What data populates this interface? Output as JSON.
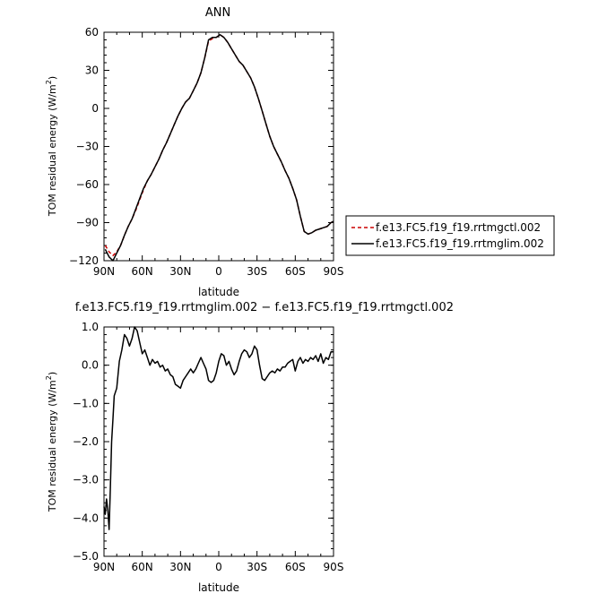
{
  "chart_data": [
    {
      "type": "line",
      "title": "ANN",
      "xlabel": "latitude",
      "ylabel": "TOM residual energy (W/m²)",
      "ylabel_main": "TOM residual energy (W/m",
      "ylabel_tail": ")",
      "ylabel_sup": "2",
      "xlim": [
        90,
        -90
      ],
      "ylim": [
        -120,
        60
      ],
      "xticks": [
        90,
        60,
        30,
        0,
        -30,
        -60,
        -90
      ],
      "xtick_labels": [
        "90N",
        "60N",
        "30N",
        "0",
        "30S",
        "60S",
        "90S"
      ],
      "yticks": [
        -120,
        -90,
        -60,
        -30,
        0,
        30,
        60
      ],
      "ytick_labels": [
        "−120",
        "−90",
        "−60",
        "−30",
        "0",
        "30",
        "60"
      ],
      "legend": "right",
      "series": [
        {
          "name": "f.e13.FC5.f19_f19.rrtmgctl.002",
          "color": "#cc0000",
          "dash": "dashed",
          "x": [
            89,
            86,
            83,
            80,
            77,
            74,
            71,
            68,
            65,
            62,
            59,
            56,
            53,
            50,
            47,
            44,
            41,
            38,
            35,
            32,
            29,
            26,
            23,
            20,
            17,
            14,
            11,
            8,
            5,
            2,
            -1,
            -4,
            -7,
            -10,
            -13,
            -16,
            -19,
            -22,
            -25,
            -28,
            -31,
            -34,
            -37,
            -40,
            -43,
            -46,
            -49,
            -52,
            -55,
            -58,
            -61,
            -64,
            -67,
            -70,
            -73,
            -76,
            -79,
            -82,
            -85,
            -88,
            -90
          ],
          "y": [
            -108,
            -113,
            -116,
            -113,
            -108,
            -100,
            -93,
            -87,
            -80,
            -72,
            -64,
            -57,
            -52,
            -46,
            -40,
            -33,
            -27,
            -20,
            -13,
            -6,
            0,
            5,
            8,
            14,
            20,
            28,
            40,
            53,
            55,
            56,
            58,
            56,
            52,
            47,
            42,
            37,
            34,
            29,
            24,
            17,
            8,
            -2,
            -12,
            -22,
            -30,
            -36,
            -42,
            -49,
            -55,
            -63,
            -72,
            -85,
            -97,
            -99,
            -98,
            -96,
            -95,
            -94,
            -93,
            -90,
            -89
          ]
        },
        {
          "name": "f.e13.FC5.f19_f19.rrtmglim.002",
          "color": "#000000",
          "dash": "solid",
          "x": [
            89,
            86,
            83,
            80,
            77,
            74,
            71,
            68,
            65,
            62,
            59,
            56,
            53,
            50,
            47,
            44,
            41,
            38,
            35,
            32,
            29,
            26,
            23,
            20,
            17,
            14,
            11,
            8,
            5,
            2,
            -1,
            -4,
            -7,
            -10,
            -13,
            -16,
            -19,
            -22,
            -25,
            -28,
            -31,
            -34,
            -37,
            -40,
            -43,
            -46,
            -49,
            -52,
            -55,
            -58,
            -61,
            -64,
            -67,
            -70,
            -73,
            -76,
            -79,
            -82,
            -85,
            -88,
            -90
          ],
          "y": [
            -111,
            -117,
            -120,
            -114,
            -108,
            -100,
            -93,
            -87,
            -79,
            -71,
            -63,
            -57,
            -52,
            -46,
            -40,
            -33,
            -27,
            -20,
            -13,
            -6,
            0,
            5,
            8,
            14,
            20,
            28,
            40,
            54,
            56,
            56,
            58,
            56,
            52,
            47,
            42,
            37,
            34,
            29,
            24,
            17,
            8,
            -2,
            -12,
            -22,
            -30,
            -36,
            -42,
            -49,
            -55,
            -63,
            -72,
            -85,
            -97,
            -99,
            -98,
            -96,
            -95,
            -94,
            -93,
            -90,
            -89
          ]
        }
      ]
    },
    {
      "type": "line",
      "title": "f.e13.FC5.f19_f19.rrtmglim.002 − f.e13.FC5.f19_f19.rrtmgctl.002",
      "xlabel": "latitude",
      "ylabel": "TOM residual energy (W/m²)",
      "ylabel_main": "TOM residual energy (W/m",
      "ylabel_tail": ")",
      "ylabel_sup": "2",
      "xlim": [
        90,
        -90
      ],
      "ylim": [
        -5,
        1
      ],
      "xticks": [
        90,
        60,
        30,
        0,
        -30,
        -60,
        -90
      ],
      "xtick_labels": [
        "90N",
        "60N",
        "30N",
        "0",
        "30S",
        "60S",
        "90S"
      ],
      "yticks": [
        -5,
        -4,
        -3,
        -2,
        -1,
        0,
        1
      ],
      "ytick_labels": [
        "−5.0",
        "−4.0",
        "−3.0",
        "−2.0",
        "−1.0",
        "0.0",
        "1.0"
      ],
      "series": [
        {
          "name": "",
          "color": "#000000",
          "dash": "solid",
          "x": [
            90,
            89,
            88,
            87,
            86,
            85,
            84,
            83,
            82,
            80,
            78,
            76,
            74,
            72,
            70,
            68,
            66,
            64,
            62,
            60,
            58,
            56,
            54,
            52,
            50,
            48,
            46,
            44,
            42,
            40,
            38,
            36,
            34,
            32,
            30,
            28,
            26,
            24,
            22,
            20,
            18,
            16,
            14,
            12,
            10,
            8,
            6,
            4,
            2,
            0,
            -2,
            -4,
            -6,
            -8,
            -10,
            -12,
            -14,
            -16,
            -18,
            -20,
            -22,
            -24,
            -26,
            -28,
            -30,
            -32,
            -34,
            -36,
            -38,
            -40,
            -42,
            -44,
            -46,
            -48,
            -50,
            -52,
            -54,
            -56,
            -58,
            -60,
            -62,
            -64,
            -66,
            -68,
            -70,
            -72,
            -74,
            -76,
            -78,
            -80,
            -82,
            -84,
            -86,
            -88,
            -90
          ],
          "y": [
            -3.7,
            -3.9,
            -3.5,
            -3.8,
            -4.3,
            -3.2,
            -2.0,
            -1.4,
            -0.8,
            -0.6,
            0.1,
            0.4,
            0.8,
            0.7,
            0.5,
            0.7,
            1.0,
            0.9,
            0.6,
            0.3,
            0.4,
            0.2,
            0.0,
            0.15,
            0.05,
            0.1,
            -0.05,
            0.0,
            -0.15,
            -0.1,
            -0.25,
            -0.3,
            -0.5,
            -0.55,
            -0.6,
            -0.4,
            -0.3,
            -0.2,
            -0.1,
            -0.2,
            -0.1,
            0.05,
            0.2,
            0.05,
            -0.1,
            -0.4,
            -0.45,
            -0.4,
            -0.2,
            0.1,
            0.3,
            0.25,
            0.0,
            0.1,
            -0.1,
            -0.25,
            -0.15,
            0.1,
            0.3,
            0.4,
            0.35,
            0.2,
            0.3,
            0.5,
            0.4,
            0.0,
            -0.35,
            -0.4,
            -0.3,
            -0.2,
            -0.15,
            -0.2,
            -0.1,
            -0.15,
            -0.05,
            -0.05,
            0.05,
            0.1,
            0.15,
            -0.15,
            0.1,
            0.2,
            0.05,
            0.15,
            0.1,
            0.2,
            0.15,
            0.25,
            0.1,
            0.3,
            0.05,
            0.2,
            0.15,
            0.35,
            0.35
          ]
        }
      ]
    }
  ]
}
